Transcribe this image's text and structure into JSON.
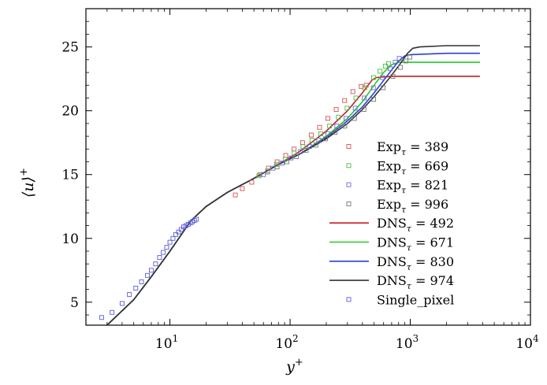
{
  "chart_data": {
    "type": "scatter",
    "title": "",
    "xlabel": "y",
    "xlabel_sup": "+",
    "ylabel": "⟨u⟩",
    "ylabel_sup": "+",
    "xscale": "log",
    "xlim": [
      2,
      10000
    ],
    "ylim": [
      3.2,
      28
    ],
    "x_ticks": [
      {
        "value": 10,
        "base": "10",
        "exp": "1"
      },
      {
        "value": 100,
        "base": "10",
        "exp": "2"
      },
      {
        "value": 1000,
        "base": "10",
        "exp": "3"
      },
      {
        "value": 10000,
        "base": "10",
        "exp": "4"
      }
    ],
    "y_ticks": [
      5,
      10,
      15,
      20,
      25
    ],
    "grid": false,
    "legend_position": "right",
    "series": [
      {
        "name": "Exp",
        "sub": "τ",
        "suffix": " = 389",
        "kind": "marker",
        "color": "#d9534f",
        "x": [
          35,
          40,
          48,
          56,
          66,
          78,
          92,
          108,
          127,
          150,
          176,
          206,
          242,
          284,
          333,
          390,
          430
        ],
        "y": [
          13.4,
          13.9,
          14.4,
          15.0,
          15.5,
          16.0,
          16.5,
          17.0,
          17.5,
          18.1,
          18.7,
          19.4,
          20.1,
          20.8,
          21.5,
          21.9,
          22.0
        ]
      },
      {
        "name": "Exp",
        "sub": "τ",
        "suffix": " = 669",
        "kind": "marker",
        "color": "#4cbb4c",
        "x": [
          55,
          65,
          77,
          91,
          108,
          128,
          152,
          180,
          213,
          252,
          298,
          353,
          418,
          495,
          560,
          620,
          660
        ],
        "y": [
          14.9,
          15.3,
          15.8,
          16.2,
          16.7,
          17.2,
          17.7,
          18.2,
          18.8,
          19.5,
          20.2,
          21.0,
          21.8,
          22.6,
          23.1,
          23.5,
          23.7
        ]
      },
      {
        "name": "Exp",
        "sub": "τ",
        "suffix": " = 821",
        "kind": "marker",
        "color": "#6a6ad9",
        "x": [
          60,
          72,
          86,
          102,
          122,
          145,
          173,
          206,
          245,
          292,
          348,
          414,
          493,
          587,
          680,
          750,
          810
        ],
        "y": [
          15.0,
          15.5,
          15.9,
          16.3,
          16.8,
          17.2,
          17.7,
          18.2,
          18.8,
          19.4,
          20.2,
          21.0,
          21.8,
          22.6,
          23.3,
          23.8,
          24.1
        ]
      },
      {
        "name": "Exp",
        "sub": "τ",
        "suffix": " = 996",
        "kind": "marker",
        "color": "#777777",
        "x": [
          65,
          78,
          94,
          113,
          136,
          164,
          197,
          237,
          285,
          343,
          412,
          496,
          596,
          717,
          830,
          920,
          990
        ],
        "y": [
          15.2,
          15.6,
          16.0,
          16.4,
          16.9,
          17.3,
          17.8,
          18.3,
          18.8,
          19.4,
          20.1,
          20.9,
          21.8,
          22.7,
          23.4,
          23.9,
          24.2
        ]
      },
      {
        "name": "DNS",
        "sub": "τ",
        "suffix": " = 492",
        "kind": "line",
        "color": "#c81e1e",
        "x": [
          3,
          5,
          7,
          10,
          15,
          20,
          30,
          50,
          80,
          120,
          200,
          300,
          400,
          480,
          520,
          700,
          1000,
          2000,
          3800
        ],
        "y": [
          3.2,
          5.2,
          7.0,
          9.0,
          11.4,
          12.5,
          13.6,
          14.7,
          15.8,
          16.8,
          18.4,
          20.0,
          21.4,
          22.4,
          22.6,
          22.7,
          22.7,
          22.7,
          22.7
        ]
      },
      {
        "name": "DNS",
        "sub": "τ",
        "suffix": " = 671",
        "kind": "line",
        "color": "#22cc22",
        "x": [
          3,
          5,
          7,
          10,
          15,
          20,
          30,
          50,
          80,
          120,
          200,
          300,
          400,
          500,
          600,
          700,
          800,
          1000,
          2000,
          3800
        ],
        "y": [
          3.2,
          5.2,
          7.0,
          9.0,
          11.4,
          12.5,
          13.6,
          14.7,
          15.8,
          16.6,
          18.0,
          19.4,
          20.7,
          22.0,
          23.0,
          23.6,
          23.8,
          23.8,
          23.8,
          23.8
        ]
      },
      {
        "name": "DNS",
        "sub": "τ",
        "suffix": " = 830",
        "kind": "line",
        "color": "#2a3fd6",
        "x": [
          3,
          5,
          7,
          10,
          15,
          20,
          30,
          50,
          80,
          120,
          200,
          300,
          400,
          500,
          650,
          800,
          900,
          1000,
          2000,
          3800
        ],
        "y": [
          3.2,
          5.2,
          7.0,
          9.0,
          11.4,
          12.5,
          13.6,
          14.7,
          15.8,
          16.6,
          17.9,
          19.2,
          20.3,
          21.4,
          22.8,
          23.9,
          24.3,
          24.4,
          24.5,
          24.5
        ]
      },
      {
        "name": "DNS",
        "sub": "τ",
        "suffix": " = 974",
        "kind": "line",
        "color": "#333333",
        "x": [
          3,
          5,
          7,
          10,
          15,
          20,
          30,
          50,
          80,
          120,
          200,
          300,
          400,
          500,
          650,
          800,
          950,
          1050,
          1200,
          2000,
          3800
        ],
        "y": [
          3.2,
          5.2,
          7.0,
          9.0,
          11.4,
          12.5,
          13.6,
          14.7,
          15.8,
          16.6,
          17.8,
          19.0,
          20.1,
          21.1,
          22.4,
          23.5,
          24.5,
          24.9,
          25.0,
          25.1,
          25.1
        ]
      },
      {
        "name": "Single_pixel",
        "sub": "",
        "suffix": "",
        "kind": "marker",
        "color": "#5b5bd9",
        "x": [
          2.7,
          3.3,
          4.0,
          4.6,
          5.2,
          5.8,
          6.5,
          7.0,
          7.6,
          8.2,
          8.8,
          9.4,
          10.0,
          10.6,
          11.2,
          11.8,
          12.4,
          13.0,
          13.6,
          14.2,
          14.8,
          15.4,
          16.0,
          16.6
        ],
        "y": [
          3.8,
          4.2,
          4.9,
          5.6,
          6.1,
          6.6,
          7.1,
          7.5,
          8.0,
          8.5,
          8.9,
          9.3,
          9.7,
          10.0,
          10.3,
          10.5,
          10.7,
          10.9,
          11.0,
          11.1,
          11.2,
          11.3,
          11.4,
          11.5
        ]
      }
    ]
  }
}
